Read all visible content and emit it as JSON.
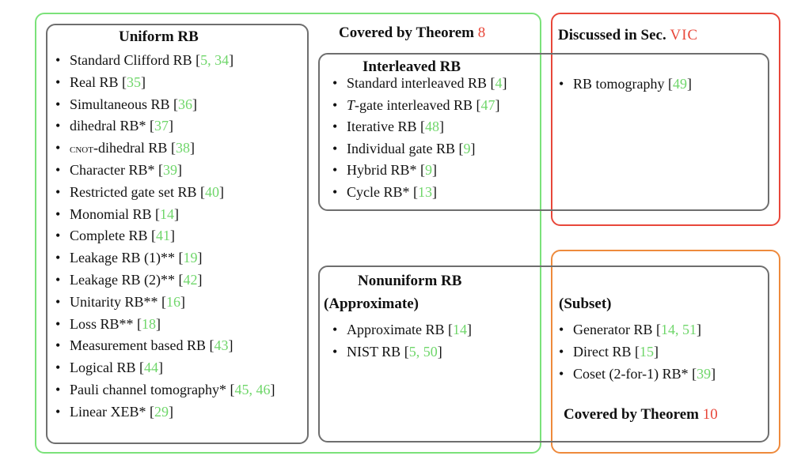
{
  "colors": {
    "covered_by_theorem_8": "#7be27a",
    "discussed_in_sec": "#e8473a",
    "covered_by_theorem_10": "#ee8a3c",
    "inner_boxes": "#6e6e6e",
    "citation": "#6fd66a",
    "highlight": "#e8473a"
  },
  "regions": {
    "theorem8": {
      "label": "Covered by Theorem ",
      "number": "8"
    },
    "section": {
      "label": "Discussed in Sec. ",
      "number": "VIC"
    },
    "theorem10": {
      "label": "Covered by Theorem ",
      "number": "10"
    }
  },
  "uniform": {
    "title": "Uniform RB",
    "items": [
      {
        "name": "Standard Clifford RB ",
        "refs": "5, 34"
      },
      {
        "name": "Real RB ",
        "refs": "35"
      },
      {
        "name": "Simultaneous RB ",
        "refs": "36"
      },
      {
        "name": "dihedral RB* ",
        "refs": "37"
      },
      {
        "name": "-dihedral RB ",
        "prefix": "cnot",
        "refs": "38"
      },
      {
        "name": "Character RB* ",
        "refs": "39"
      },
      {
        "name": "Restricted gate set RB ",
        "refs": "40"
      },
      {
        "name": "Monomial RB ",
        "refs": "14"
      },
      {
        "name": "Complete RB ",
        "refs": "41"
      },
      {
        "name": "Leakage RB (1)** ",
        "refs": "19"
      },
      {
        "name": "Leakage RB (2)** ",
        "refs": "42"
      },
      {
        "name": "Unitarity RB** ",
        "refs": "16"
      },
      {
        "name": "Loss RB** ",
        "refs": "18"
      },
      {
        "name": "Measurement based RB ",
        "refs": "43"
      },
      {
        "name": "Logical RB ",
        "refs": "44"
      },
      {
        "name": "Pauli channel tomography* ",
        "refs": "45, 46"
      },
      {
        "name": "Linear XEB* ",
        "refs": "29"
      }
    ]
  },
  "interleaved": {
    "title": "Interleaved RB",
    "items": [
      {
        "name": "Standard interleaved RB ",
        "refs": "4"
      },
      {
        "name": "-gate interleaved RB ",
        "italic_prefix": "T",
        "refs": "47"
      },
      {
        "name": "Iterative RB ",
        "refs": "48"
      },
      {
        "name": "Individual gate RB ",
        "refs": "9"
      },
      {
        "name": "Hybrid RB* ",
        "refs": "9"
      },
      {
        "name": "Cycle RB* ",
        "refs": "13"
      }
    ]
  },
  "tomography": {
    "items": [
      {
        "name": "RB tomography ",
        "refs": "49"
      }
    ]
  },
  "nonuniform": {
    "title": "Nonuniform RB",
    "approx_label": "(Approximate)",
    "subset_label": "(Subset)",
    "approx_items": [
      {
        "name": "Approximate RB ",
        "refs": "14"
      },
      {
        "name": "NIST RB ",
        "refs": "5, 50"
      }
    ],
    "subset_items": [
      {
        "name": "Generator RB ",
        "refs": "14, 51"
      },
      {
        "name": "Direct RB ",
        "refs": "15"
      },
      {
        "name": "Coset (2-for-1) RB* ",
        "refs": "39"
      }
    ]
  }
}
